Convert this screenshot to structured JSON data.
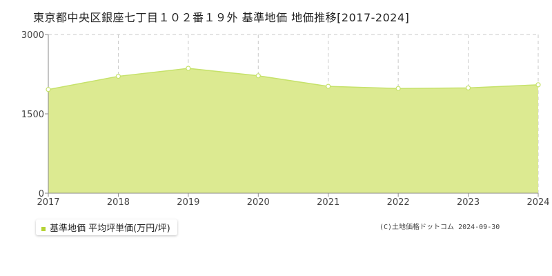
{
  "title": "東京都中央区銀座七丁目１０２番１９外 基準地価 地価推移[2017-2024]",
  "colors": {
    "area_fill": "#dcea91",
    "line": "#c6e26b",
    "grid": "#c8c8c8",
    "axis": "#888888",
    "legend_marker": "#b5d335"
  },
  "chart_data": {
    "type": "area",
    "title": "",
    "xlabel": "",
    "ylabel": "",
    "x": [
      2017,
      2018,
      2019,
      2020,
      2021,
      2022,
      2023,
      2024
    ],
    "x_tick_labels": [
      "2017",
      "2018",
      "2019",
      "2020",
      "2021",
      "2022",
      "2023",
      "2024"
    ],
    "y_tick_labels": [
      "0",
      "1500",
      "3000"
    ],
    "y_ticks": [
      0,
      1500,
      3000
    ],
    "ylim": [
      0,
      3000
    ],
    "grid": true,
    "legend_position": "bottom-left",
    "series": [
      {
        "name": "基準地価 平均坪単価(万円/坪)",
        "values": [
          1960,
          2210,
          2360,
          2220,
          2020,
          1980,
          1990,
          2050
        ]
      }
    ]
  },
  "legend": {
    "label": "基準地価 平均坪単価(万円/坪)"
  },
  "copyright": "(C)土地価格ドットコム 2024-09-30"
}
